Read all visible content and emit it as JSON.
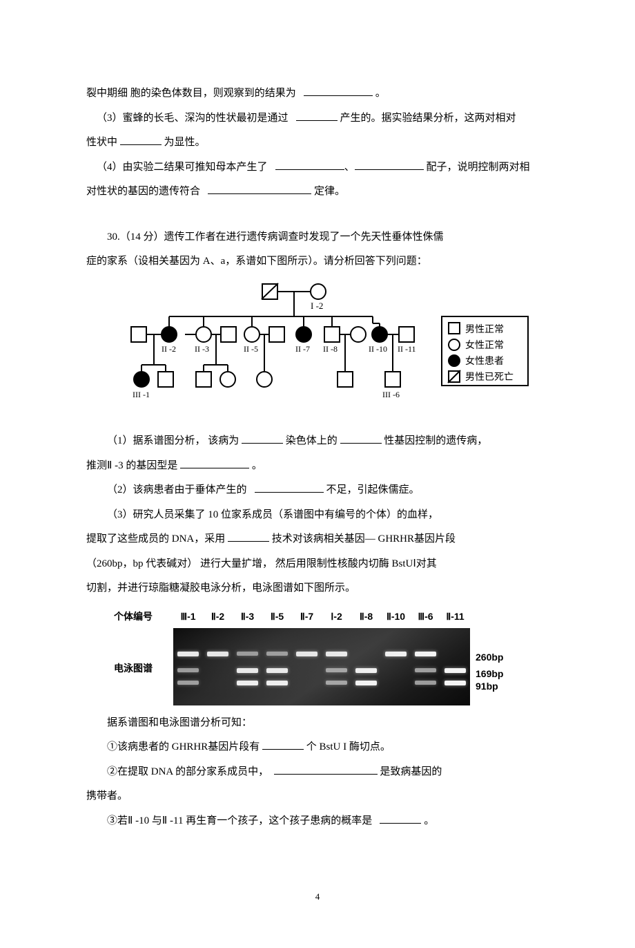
{
  "q29": {
    "line1_a": "裂中期细  胞的染色体数目，则观察到的结果为",
    "line1_b": "。",
    "line2_a": "（3）蜜蜂的长毛、深沟的性状最初是通过",
    "line2_b": "产生的。据实验结果分析，这两对相对",
    "line3_a": "性状中",
    "line3_b": "为显性。",
    "line4_a": "（4）由实验二结果可推知母本产生了",
    "line4_b": "配子，说明控制两对相",
    "line5_a": "对性状的基因的遗传符合",
    "line5_b": "定律。"
  },
  "q30": {
    "intro1": "30.（14 分）遗传工作者在进行遗传病调查时发现了一个先天性垂体性侏儒",
    "intro2": "症的家系（设相关基因为  A、a，系谱如下图所示）。请分析回答下列问题：",
    "legend": {
      "male_normal": "男性正常",
      "female_normal": "女性正常",
      "female_affected": "女性患者",
      "male_dead": "男性已死亡"
    },
    "pedigree_labels": {
      "I2": "I -2",
      "II2": "II -2",
      "II3": "II -3",
      "II5": "II -5",
      "II7": "II -7",
      "II8": "II -8",
      "II10": "II -10",
      "II11": "II -11",
      "III1": "III -1",
      "III6": "III -6"
    },
    "sub1_a": "（1）据系谱图分析，  该病为",
    "sub1_b": "染色体上的",
    "sub1_c": "性基因控制的遗传病，",
    "sub1_d": "推测Ⅱ -3 的基因型是",
    "sub1_e": "。",
    "sub2_a": "（2）该病患者由于垂体产生的",
    "sub2_b": "不足，引起侏儒症。",
    "sub3_a": "（3）研究人员采集了  10 位家系成员（系谱图中有编号的个体）的血样，",
    "sub3_b": "提取了这些成员的  DNA，采用",
    "sub3_c": " 技术对该病相关基因— GHRHR基因片段",
    "sub3_d": "（260bp，bp 代表碱对） 进行大量扩增，  然后用限制性核酸内切酶   BstUⅠ对其",
    "sub3_e": "切割，并进行琼脂糖凝胶电泳分析，电泳图谱如下图所示。",
    "gel": {
      "header_label": "个体编号",
      "side_label": "电泳图谱",
      "columns": [
        "Ⅲ-1",
        "Ⅱ-2",
        "Ⅱ-3",
        "Ⅱ-5",
        "Ⅱ-7",
        "Ⅰ-2",
        "Ⅱ-8",
        "Ⅱ-10",
        "Ⅲ-6",
        "Ⅱ-11"
      ],
      "size_labels": {
        "260": "260bp",
        "169": "169bp",
        "91": "91bp"
      },
      "band_y": {
        "260": 34,
        "169": 58,
        "91": 76
      },
      "lanes": [
        {
          "bands": [
            {
              "y": "260",
              "faint": false
            },
            {
              "y": "169",
              "faint": true
            },
            {
              "y": "91",
              "faint": true
            }
          ]
        },
        {
          "bands": [
            {
              "y": "260",
              "faint": false
            }
          ]
        },
        {
          "bands": [
            {
              "y": "260",
              "faint": true
            },
            {
              "y": "169",
              "faint": false
            },
            {
              "y": "91",
              "faint": false
            }
          ]
        },
        {
          "bands": [
            {
              "y": "260",
              "faint": true
            },
            {
              "y": "169",
              "faint": false
            },
            {
              "y": "91",
              "faint": false
            }
          ]
        },
        {
          "bands": [
            {
              "y": "260",
              "faint": false
            }
          ]
        },
        {
          "bands": [
            {
              "y": "260",
              "faint": false
            },
            {
              "y": "169",
              "faint": true
            },
            {
              "y": "91",
              "faint": true
            }
          ]
        },
        {
          "bands": [
            {
              "y": "169",
              "faint": false
            },
            {
              "y": "91",
              "faint": false
            }
          ]
        },
        {
          "bands": [
            {
              "y": "260",
              "faint": false
            }
          ]
        },
        {
          "bands": [
            {
              "y": "260",
              "faint": false
            },
            {
              "y": "169",
              "faint": true
            },
            {
              "y": "91",
              "faint": true
            }
          ]
        },
        {
          "bands": [
            {
              "y": "169",
              "faint": false
            },
            {
              "y": "91",
              "faint": false
            }
          ]
        }
      ]
    },
    "concl_intro": "据系谱图和电泳图谱分析可知：",
    "concl1_a": "①该病患者的  GHRHR基因片段有",
    "concl1_b": "个 BstU I 酶切点。",
    "concl2_a": "②在提取  DNA 的部分家系成员中，",
    "concl2_b": "是致病基因的",
    "concl2_c": "携带者。",
    "concl3_a": "③若Ⅱ -10 与Ⅱ -11 再生育一个孩子，这个孩子患病的概率是",
    "concl3_b": "。"
  },
  "page_number": "4"
}
